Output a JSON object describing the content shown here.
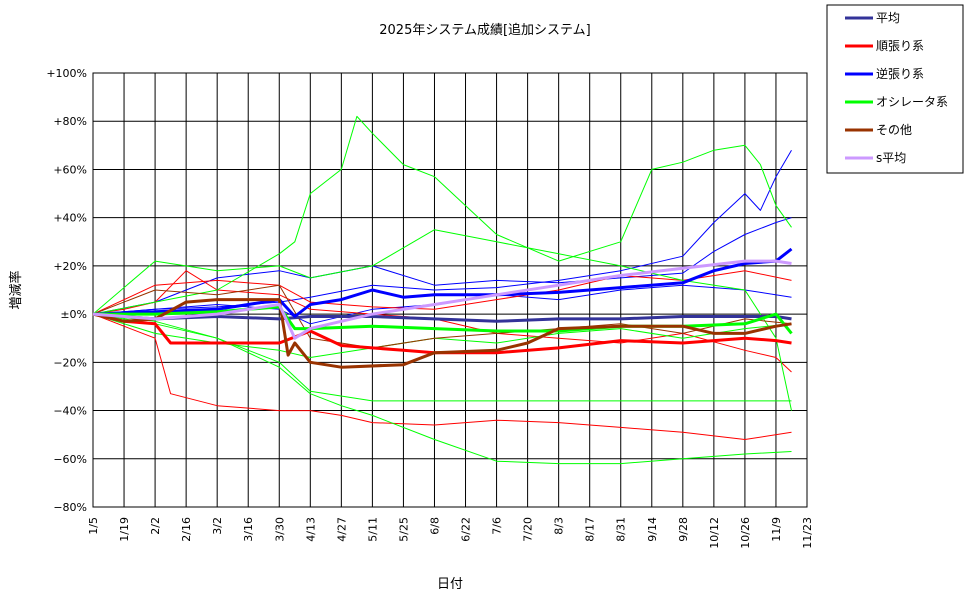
{
  "chart_data": {
    "type": "line",
    "title": "2025年システム成績[追加システム]",
    "xlabel": "日付",
    "ylabel": "増減率",
    "ylim": [
      -80,
      100
    ],
    "yticks": [
      100,
      80,
      60,
      40,
      20,
      0,
      -20,
      -40,
      -60,
      -80
    ],
    "ytick_labels": [
      "+100%",
      "+80%",
      "+60%",
      "+40%",
      "+20%",
      "±0%",
      "−20%",
      "−40%",
      "−60%",
      "−80%"
    ],
    "xlim": [
      "2025-01-05",
      "2025-11-23"
    ],
    "xtick_labels": [
      "1/5",
      "1/19",
      "2/2",
      "2/16",
      "3/2",
      "3/16",
      "3/30",
      "4/13",
      "4/27",
      "5/11",
      "5/25",
      "6/8",
      "6/22",
      "7/6",
      "7/20",
      "8/3",
      "8/17",
      "8/31",
      "9/14",
      "9/28",
      "10/12",
      "10/26",
      "11/9",
      "11/23"
    ],
    "grid": true,
    "legend_position": "top-right",
    "legend": [
      {
        "name": "平均",
        "color": "#333399"
      },
      {
        "name": "順張り系",
        "color": "#ff0000"
      },
      {
        "name": "逆張り系",
        "color": "#0000ff"
      },
      {
        "name": "オシレータ系",
        "color": "#00ff00"
      },
      {
        "name": "その他",
        "color": "#993300"
      },
      {
        "name": "s平均",
        "color": "#cc99ff"
      }
    ],
    "series": [
      {
        "name": "平均",
        "color": "#333399",
        "width": 3,
        "x": [
          "2025-01-05",
          "2025-02-02",
          "2025-03-02",
          "2025-03-30",
          "2025-04-13",
          "2025-05-11",
          "2025-06-08",
          "2025-07-06",
          "2025-08-03",
          "2025-08-31",
          "2025-09-28",
          "2025-10-26",
          "2025-11-09",
          "2025-11-16"
        ],
        "y": [
          0,
          -2,
          -1,
          -2,
          -1,
          -1,
          -2,
          -3,
          -2,
          -2,
          -1,
          -1,
          -1,
          -2
        ]
      },
      {
        "name": "順張り系",
        "color": "#ff0000",
        "width": 3,
        "x": [
          "2025-01-05",
          "2025-01-19",
          "2025-02-02",
          "2025-02-09",
          "2025-03-02",
          "2025-03-30",
          "2025-04-13",
          "2025-04-27",
          "2025-05-11",
          "2025-05-25",
          "2025-06-08",
          "2025-07-06",
          "2025-08-03",
          "2025-08-31",
          "2025-09-28",
          "2025-10-26",
          "2025-11-09",
          "2025-11-16"
        ],
        "y": [
          0,
          -3,
          -4,
          -12,
          -12,
          -12,
          -7,
          -13,
          -14,
          -15,
          -16,
          -16,
          -14,
          -11,
          -12,
          -10,
          -11,
          -12
        ]
      },
      {
        "name": "逆張り系",
        "color": "#0000ff",
        "width": 3,
        "x": [
          "2025-01-05",
          "2025-02-02",
          "2025-03-02",
          "2025-03-23",
          "2025-03-30",
          "2025-04-06",
          "2025-04-13",
          "2025-04-27",
          "2025-05-11",
          "2025-05-25",
          "2025-06-08",
          "2025-07-06",
          "2025-08-03",
          "2025-08-31",
          "2025-09-28",
          "2025-10-12",
          "2025-10-26",
          "2025-11-09",
          "2025-11-16"
        ],
        "y": [
          0,
          1,
          2,
          5,
          6,
          -1,
          4,
          6,
          10,
          7,
          8,
          8,
          9,
          11,
          13,
          18,
          21,
          22,
          27
        ]
      },
      {
        "name": "オシレータ系",
        "color": "#00ff00",
        "width": 3,
        "x": [
          "2025-01-05",
          "2025-02-02",
          "2025-03-02",
          "2025-03-30",
          "2025-04-06",
          "2025-04-13",
          "2025-05-11",
          "2025-06-08",
          "2025-07-06",
          "2025-08-03",
          "2025-08-31",
          "2025-09-28",
          "2025-10-26",
          "2025-11-09",
          "2025-11-16"
        ],
        "y": [
          0,
          0,
          1,
          3,
          -6,
          -6,
          -5,
          -6,
          -7,
          -7,
          -5,
          -5,
          -4,
          0,
          -8
        ]
      },
      {
        "name": "その他",
        "color": "#993300",
        "width": 3,
        "x": [
          "2025-01-05",
          "2025-01-19",
          "2025-02-02",
          "2025-02-16",
          "2025-03-02",
          "2025-03-30",
          "2025-04-03",
          "2025-04-06",
          "2025-04-13",
          "2025-04-27",
          "2025-05-25",
          "2025-06-08",
          "2025-07-06",
          "2025-07-20",
          "2025-08-03",
          "2025-08-31",
          "2025-09-28",
          "2025-10-12",
          "2025-10-26",
          "2025-11-09",
          "2025-11-16"
        ],
        "y": [
          0,
          -3,
          -2,
          5,
          6,
          6,
          -17,
          -12,
          -20,
          -22,
          -21,
          -16,
          -15,
          -12,
          -6,
          -5,
          -5,
          -8,
          -8,
          -5,
          -4
        ]
      },
      {
        "name": "s平均",
        "color": "#cc99ff",
        "width": 3,
        "x": [
          "2025-01-05",
          "2025-02-02",
          "2025-03-02",
          "2025-03-30",
          "2025-04-06",
          "2025-04-13",
          "2025-05-11",
          "2025-06-08",
          "2025-07-06",
          "2025-08-03",
          "2025-08-31",
          "2025-09-28",
          "2025-10-26",
          "2025-11-09",
          "2025-11-16"
        ],
        "y": [
          0,
          -2,
          0,
          4,
          -10,
          -6,
          0,
          4,
          8,
          12,
          16,
          19,
          22,
          22,
          21
        ]
      },
      {
        "name": "",
        "color": "#0000ff",
        "width": 1,
        "x": [
          "2025-01-05",
          "2025-02-02",
          "2025-03-02",
          "2025-03-30",
          "2025-04-13",
          "2025-05-11",
          "2025-06-08",
          "2025-07-06",
          "2025-08-03",
          "2025-08-31",
          "2025-09-28",
          "2025-10-12",
          "2025-10-26",
          "2025-11-02",
          "2025-11-09",
          "2025-11-16"
        ],
        "y": [
          0,
          2,
          3,
          5,
          7,
          12,
          10,
          11,
          14,
          18,
          24,
          38,
          50,
          43,
          57,
          68
        ]
      },
      {
        "name": "",
        "color": "#0000ff",
        "width": 1,
        "x": [
          "2025-01-05",
          "2025-02-02",
          "2025-03-02",
          "2025-03-30",
          "2025-04-13",
          "2025-05-11",
          "2025-06-08",
          "2025-07-06",
          "2025-08-03",
          "2025-08-31",
          "2025-09-28",
          "2025-10-12",
          "2025-10-26",
          "2025-11-09",
          "2025-11-16"
        ],
        "y": [
          0,
          5,
          15,
          18,
          15,
          20,
          12,
          14,
          13,
          15,
          17,
          26,
          33,
          38,
          40
        ]
      },
      {
        "name": "",
        "color": "#0000ff",
        "width": 1,
        "x": [
          "2025-01-05",
          "2025-02-02",
          "2025-03-02",
          "2025-03-30",
          "2025-04-13",
          "2025-05-11",
          "2025-06-08",
          "2025-07-06",
          "2025-08-03",
          "2025-08-31",
          "2025-09-28",
          "2025-10-26",
          "2025-11-16"
        ],
        "y": [
          0,
          2,
          4,
          2,
          -4,
          2,
          4,
          8,
          6,
          10,
          12,
          10,
          7
        ]
      },
      {
        "name": "",
        "color": "#ff0000",
        "width": 1,
        "x": [
          "2025-01-05",
          "2025-01-19",
          "2025-02-02",
          "2025-02-09",
          "2025-03-02",
          "2025-03-30",
          "2025-04-13",
          "2025-04-27",
          "2025-05-11",
          "2025-06-08",
          "2025-07-06",
          "2025-08-03",
          "2025-08-31",
          "2025-09-28",
          "2025-10-26",
          "2025-11-16"
        ],
        "y": [
          0,
          -5,
          -10,
          -33,
          -38,
          -40,
          -40,
          -42,
          -45,
          -46,
          -44,
          -45,
          -47,
          -49,
          -52,
          -49
        ]
      },
      {
        "name": "",
        "color": "#ff0000",
        "width": 1,
        "x": [
          "2025-01-05",
          "2025-01-19",
          "2025-02-02",
          "2025-02-16",
          "2025-03-02",
          "2025-03-30",
          "2025-04-13",
          "2025-05-11",
          "2025-06-08",
          "2025-07-06",
          "2025-08-03",
          "2025-08-31",
          "2025-09-28",
          "2025-10-26",
          "2025-11-09",
          "2025-11-16"
        ],
        "y": [
          0,
          2,
          5,
          18,
          10,
          8,
          2,
          0,
          -2,
          -8,
          -10,
          -12,
          -8,
          -15,
          -18,
          -24
        ]
      },
      {
        "name": "",
        "color": "#ff0000",
        "width": 1,
        "x": [
          "2025-01-05",
          "2025-02-02",
          "2025-03-02",
          "2025-03-30",
          "2025-04-13",
          "2025-05-11",
          "2025-06-08",
          "2025-07-06",
          "2025-08-03",
          "2025-08-31",
          "2025-09-28",
          "2025-10-26",
          "2025-11-16"
        ],
        "y": [
          0,
          12,
          14,
          12,
          5,
          3,
          2,
          6,
          10,
          16,
          14,
          18,
          14
        ]
      },
      {
        "name": "",
        "color": "#00ff00",
        "width": 1,
        "x": [
          "2025-01-05",
          "2025-02-02",
          "2025-03-02",
          "2025-03-30",
          "2025-04-06",
          "2025-04-13",
          "2025-04-27",
          "2025-05-04",
          "2025-05-11",
          "2025-05-25",
          "2025-06-08",
          "2025-06-22",
          "2025-07-06",
          "2025-08-03",
          "2025-08-31",
          "2025-09-14",
          "2025-09-28",
          "2025-10-12",
          "2025-10-26",
          "2025-11-02",
          "2025-11-09",
          "2025-11-16"
        ],
        "y": [
          0,
          5,
          10,
          25,
          30,
          50,
          60,
          82,
          75,
          62,
          57,
          45,
          33,
          22,
          30,
          60,
          63,
          68,
          70,
          62,
          45,
          36
        ]
      },
      {
        "name": "",
        "color": "#00ff00",
        "width": 1,
        "x": [
          "2025-01-05",
          "2025-02-02",
          "2025-03-02",
          "2025-03-30",
          "2025-04-13",
          "2025-04-27",
          "2025-05-11",
          "2025-06-08",
          "2025-07-06",
          "2025-08-03",
          "2025-08-31",
          "2025-09-28",
          "2025-10-26",
          "2025-11-16"
        ],
        "y": [
          0,
          -4,
          -10,
          -22,
          -33,
          -38,
          -42,
          -52,
          -61,
          -62,
          -62,
          -60,
          -58,
          -57
        ]
      },
      {
        "name": "",
        "color": "#00ff00",
        "width": 1,
        "x": [
          "2025-01-05",
          "2025-02-02",
          "2025-03-02",
          "2025-03-30",
          "2025-04-13",
          "2025-05-11",
          "2025-06-08",
          "2025-07-06",
          "2025-08-03",
          "2025-08-31",
          "2025-09-28",
          "2025-10-26",
          "2025-11-09",
          "2025-11-16"
        ],
        "y": [
          0,
          -3,
          -10,
          -20,
          -32,
          -36,
          -36,
          -36,
          -36,
          -36,
          -36,
          -36,
          -36,
          -36
        ]
      },
      {
        "name": "",
        "color": "#00ff00",
        "width": 1,
        "x": [
          "2025-01-05",
          "2025-02-02",
          "2025-03-02",
          "2025-03-30",
          "2025-04-13",
          "2025-05-11",
          "2025-06-08",
          "2025-07-06",
          "2025-08-03",
          "2025-08-31",
          "2025-09-28",
          "2025-10-26",
          "2025-11-09",
          "2025-11-16"
        ],
        "y": [
          0,
          22,
          18,
          20,
          15,
          20,
          35,
          30,
          25,
          20,
          14,
          10,
          -10,
          -40
        ]
      },
      {
        "name": "",
        "color": "#00ff00",
        "width": 1,
        "x": [
          "2025-01-05",
          "2025-02-02",
          "2025-03-02",
          "2025-03-30",
          "2025-04-13",
          "2025-05-11",
          "2025-06-08",
          "2025-07-06",
          "2025-08-03",
          "2025-08-31",
          "2025-09-28",
          "2025-10-26",
          "2025-11-16"
        ],
        "y": [
          0,
          -8,
          -12,
          -15,
          -18,
          -14,
          -10,
          -12,
          -8,
          -6,
          -10,
          -6,
          -4
        ]
      },
      {
        "name": "",
        "color": "#993300",
        "width": 1,
        "x": [
          "2025-01-05",
          "2025-02-02",
          "2025-03-02",
          "2025-03-30",
          "2025-04-13",
          "2025-05-11",
          "2025-06-08",
          "2025-07-06",
          "2025-08-03",
          "2025-08-31",
          "2025-09-28",
          "2025-10-26",
          "2025-11-16"
        ],
        "y": [
          0,
          10,
          8,
          12,
          -10,
          -14,
          -10,
          -8,
          -6,
          -4,
          -8,
          -2,
          -4
        ]
      }
    ]
  }
}
